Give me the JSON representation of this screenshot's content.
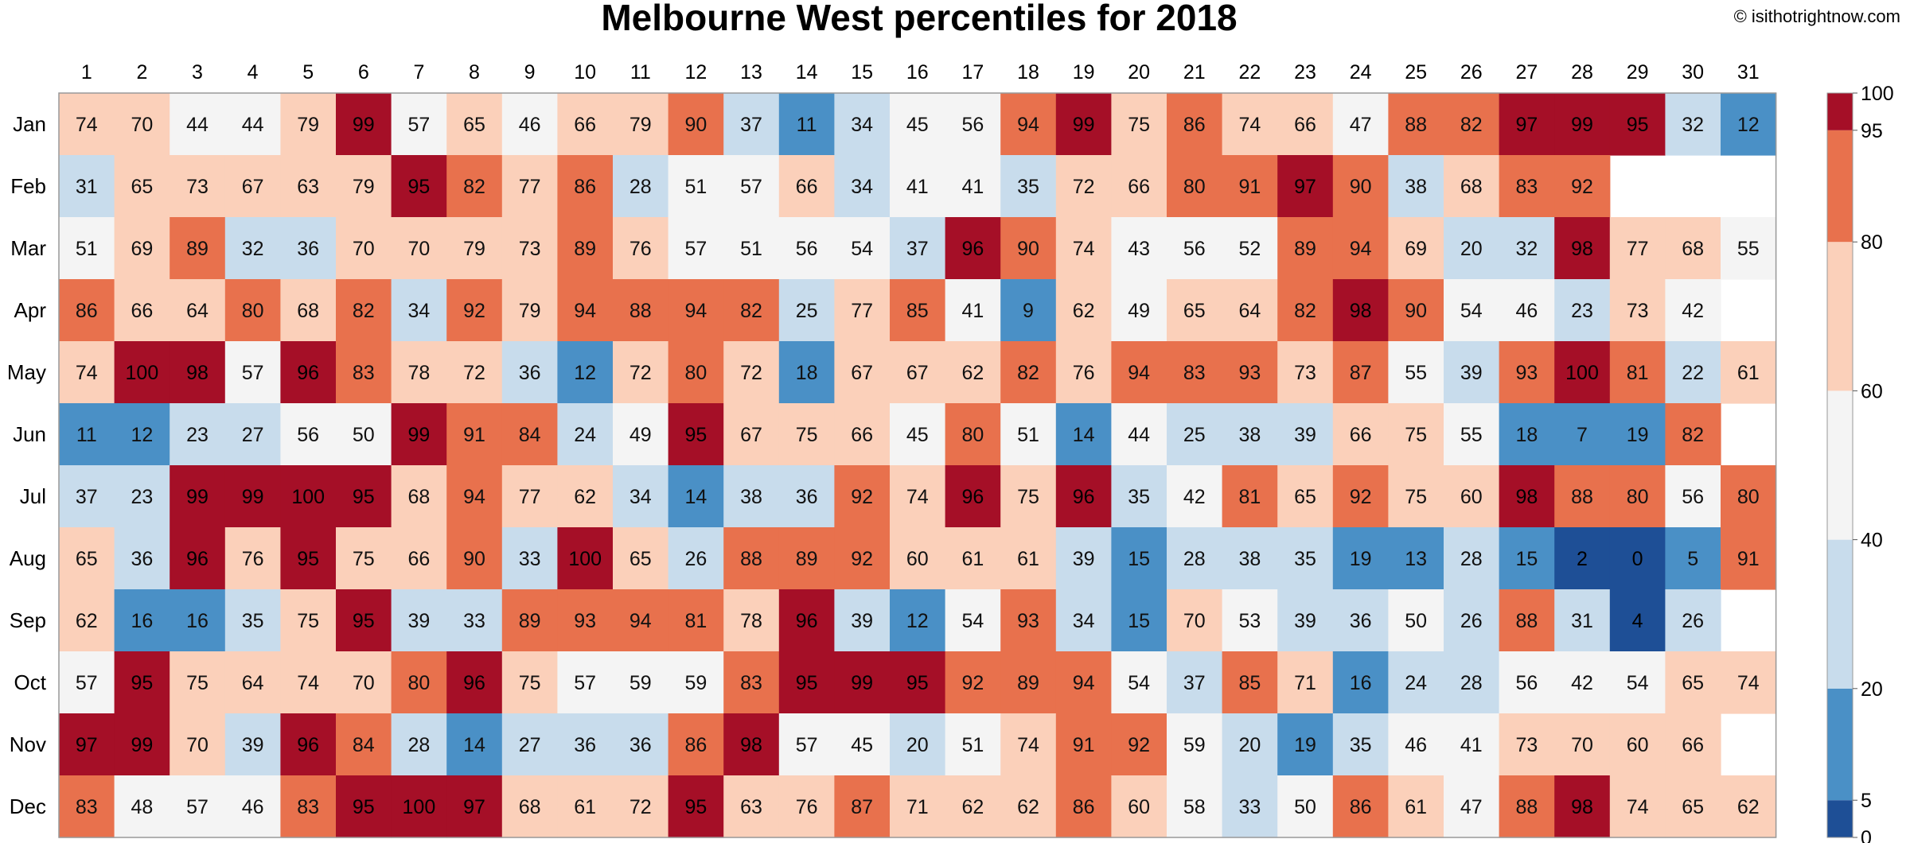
{
  "header": {
    "title": "Melbourne West percentiles for 2018",
    "copyright": "© isithotrightnow.com"
  },
  "chart_data": {
    "type": "heatmap",
    "title": "Melbourne West percentiles for 2018",
    "columns": [
      "1",
      "2",
      "3",
      "4",
      "5",
      "6",
      "7",
      "8",
      "9",
      "10",
      "11",
      "12",
      "13",
      "14",
      "15",
      "16",
      "17",
      "18",
      "19",
      "20",
      "21",
      "22",
      "23",
      "24",
      "25",
      "26",
      "27",
      "28",
      "29",
      "30",
      "31"
    ],
    "rows": [
      "Jan",
      "Feb",
      "Mar",
      "Apr",
      "May",
      "Jun",
      "Jul",
      "Aug",
      "Sep",
      "Oct",
      "Nov",
      "Dec"
    ],
    "values": [
      [
        74,
        70,
        44,
        44,
        79,
        99,
        57,
        65,
        46,
        66,
        79,
        90,
        37,
        11,
        34,
        45,
        56,
        94,
        99,
        75,
        86,
        74,
        66,
        47,
        88,
        82,
        97,
        99,
        95,
        32,
        12
      ],
      [
        31,
        65,
        73,
        67,
        63,
        79,
        95,
        82,
        77,
        86,
        28,
        51,
        57,
        66,
        34,
        41,
        41,
        35,
        72,
        66,
        80,
        91,
        97,
        90,
        38,
        68,
        83,
        92,
        null,
        null,
        null
      ],
      [
        51,
        69,
        89,
        32,
        36,
        70,
        70,
        79,
        73,
        89,
        76,
        57,
        51,
        56,
        54,
        37,
        96,
        90,
        74,
        43,
        56,
        52,
        89,
        94,
        69,
        20,
        32,
        98,
        77,
        68,
        55
      ],
      [
        86,
        66,
        64,
        80,
        68,
        82,
        34,
        92,
        79,
        94,
        88,
        94,
        82,
        25,
        77,
        85,
        41,
        9,
        62,
        49,
        65,
        64,
        82,
        98,
        90,
        54,
        46,
        23,
        73,
        42,
        null
      ],
      [
        74,
        100,
        98,
        57,
        96,
        83,
        78,
        72,
        36,
        12,
        72,
        80,
        72,
        18,
        67,
        67,
        62,
        82,
        76,
        94,
        83,
        93,
        73,
        87,
        55,
        39,
        93,
        100,
        81,
        22,
        61
      ],
      [
        11,
        12,
        23,
        27,
        56,
        50,
        99,
        91,
        84,
        24,
        49,
        95,
        67,
        75,
        66,
        45,
        80,
        51,
        14,
        44,
        25,
        38,
        39,
        66,
        75,
        55,
        18,
        7,
        19,
        82,
        null
      ],
      [
        37,
        23,
        99,
        99,
        100,
        95,
        68,
        94,
        77,
        62,
        34,
        14,
        38,
        36,
        92,
        74,
        96,
        75,
        96,
        35,
        42,
        81,
        65,
        92,
        75,
        60,
        98,
        88,
        80,
        56,
        80
      ],
      [
        65,
        36,
        96,
        76,
        95,
        75,
        66,
        90,
        33,
        100,
        65,
        26,
        88,
        89,
        92,
        60,
        61,
        61,
        39,
        15,
        28,
        38,
        35,
        19,
        13,
        28,
        15,
        2,
        0,
        5,
        91
      ],
      [
        62,
        16,
        16,
        35,
        75,
        95,
        39,
        33,
        89,
        93,
        94,
        81,
        78,
        96,
        39,
        12,
        54,
        93,
        34,
        15,
        70,
        53,
        39,
        36,
        50,
        26,
        88,
        31,
        4,
        26,
        null
      ],
      [
        57,
        95,
        75,
        64,
        74,
        70,
        80,
        96,
        75,
        57,
        59,
        59,
        83,
        95,
        99,
        95,
        92,
        89,
        94,
        54,
        37,
        85,
        71,
        16,
        24,
        28,
        56,
        42,
        54,
        65,
        74
      ],
      [
        97,
        99,
        70,
        39,
        96,
        84,
        28,
        14,
        27,
        36,
        36,
        86,
        98,
        57,
        45,
        20,
        51,
        74,
        91,
        92,
        59,
        20,
        19,
        35,
        46,
        41,
        73,
        70,
        60,
        66,
        null
      ],
      [
        83,
        48,
        57,
        46,
        83,
        95,
        100,
        97,
        68,
        61,
        72,
        95,
        63,
        76,
        87,
        71,
        62,
        62,
        86,
        60,
        58,
        33,
        50,
        86,
        61,
        47,
        88,
        98,
        74,
        65,
        62
      ]
    ],
    "colorbar": {
      "ticks": [
        0,
        5,
        20,
        40,
        60,
        80,
        95,
        100
      ],
      "bins": [
        {
          "from": 0,
          "to": 5,
          "color": "#1e4f96"
        },
        {
          "from": 5,
          "to": 20,
          "color": "#4a90c6"
        },
        {
          "from": 20,
          "to": 40,
          "color": "#c8dcec"
        },
        {
          "from": 40,
          "to": 60,
          "color": "#f4f4f4"
        },
        {
          "from": 60,
          "to": 80,
          "color": "#fbd0ba"
        },
        {
          "from": 80,
          "to": 95,
          "color": "#e8714d"
        },
        {
          "from": 95,
          "to": 100,
          "color": "#a50f27"
        }
      ]
    },
    "grid": false,
    "legend": "colorbar-right"
  }
}
